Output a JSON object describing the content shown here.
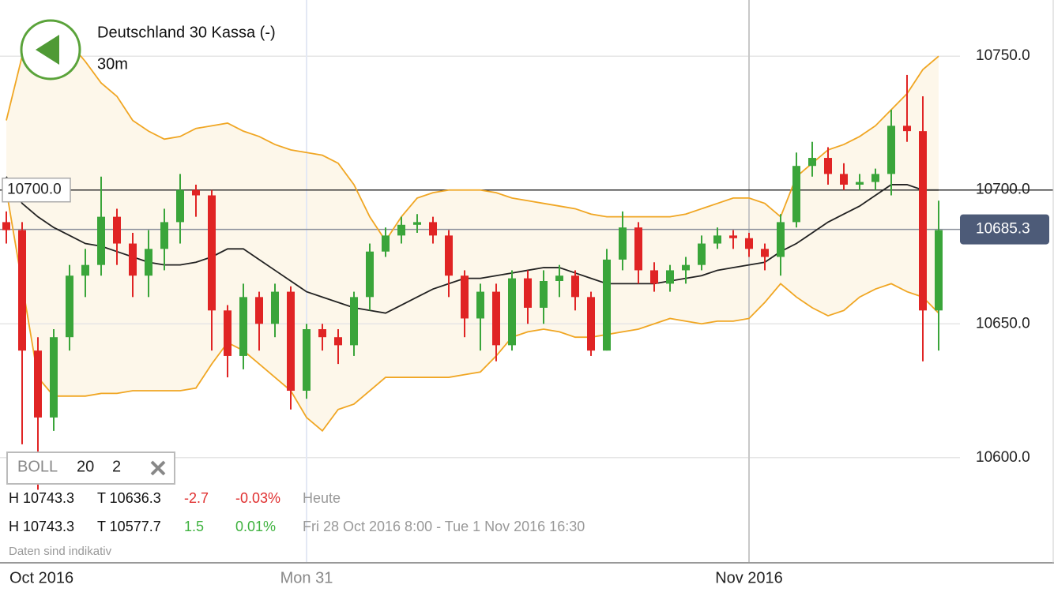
{
  "header": {
    "title": "Deutschland 30 Kassa (-)",
    "interval": "30m"
  },
  "chart_data": {
    "type": "candlestick",
    "categories": [
      "Oct 2016",
      null,
      null,
      null,
      null,
      null,
      null,
      null,
      null,
      null,
      null,
      null,
      null,
      null,
      null,
      null,
      null,
      null,
      null,
      "Mon 31",
      null,
      null,
      null,
      null,
      null,
      null,
      null,
      null,
      null,
      null,
      null,
      null,
      null,
      null,
      null,
      null,
      null,
      null,
      null,
      null,
      null,
      null,
      null,
      null,
      null,
      null,
      null,
      "Nov 2016",
      null,
      null,
      null,
      null,
      null,
      null,
      null,
      null,
      null,
      null,
      null,
      null
    ],
    "open": [
      10688,
      10685,
      10640,
      10615,
      10645,
      10668,
      10672,
      10690,
      10680,
      10668,
      10678,
      10688,
      10700,
      10698,
      10655,
      10638,
      10660,
      10650,
      10662,
      10625,
      10648,
      10645,
      10642,
      10660,
      10677,
      10683,
      10687,
      10688,
      10683,
      10668,
      10652,
      10662,
      10642,
      10667,
      10656,
      10666,
      10668,
      10660,
      10640,
      10674,
      10686,
      10670,
      10665,
      10670,
      10672,
      10680,
      10683,
      10682,
      10678,
      10675,
      10688,
      10709,
      10712,
      10706,
      10702,
      10703,
      10706,
      10724,
      10722,
      10655
    ],
    "high": [
      10692,
      10688,
      10645,
      10648,
      10672,
      10678,
      10705,
      10693,
      10684,
      10685,
      10693,
      10706,
      10702,
      10700,
      10657,
      10665,
      10662,
      10665,
      10664,
      10650,
      10650,
      10648,
      10662,
      10680,
      10686,
      10690,
      10691,
      10690,
      10685,
      10670,
      10665,
      10665,
      10670,
      10670,
      10670,
      10672,
      10670,
      10662,
      10678,
      10692,
      10688,
      10673,
      10672,
      10675,
      10683,
      10686,
      10685,
      10684,
      10680,
      10691,
      10714,
      10718,
      10716,
      10710,
      10706,
      10708,
      10730,
      10743,
      10735,
      10696
    ],
    "low": [
      10680,
      10605,
      10588,
      10610,
      10640,
      10660,
      10668,
      10672,
      10660,
      10660,
      10670,
      10680,
      10690,
      10640,
      10630,
      10633,
      10640,
      10645,
      10618,
      10622,
      10640,
      10635,
      10638,
      10655,
      10675,
      10680,
      10684,
      10680,
      10660,
      10645,
      10640,
      10636,
      10640,
      10650,
      10650,
      10660,
      10655,
      10638,
      10640,
      10670,
      10665,
      10662,
      10662,
      10665,
      10670,
      10678,
      10678,
      10675,
      10670,
      10668,
      10686,
      10705,
      10702,
      10700,
      10700,
      10700,
      10698,
      10718,
      10636,
      10640
    ],
    "close": [
      10685,
      10640,
      10615,
      10645,
      10668,
      10672,
      10690,
      10680,
      10668,
      10678,
      10688,
      10700,
      10698,
      10655,
      10638,
      10660,
      10650,
      10662,
      10625,
      10648,
      10645,
      10642,
      10660,
      10677,
      10683,
      10687,
      10688,
      10683,
      10668,
      10652,
      10662,
      10642,
      10667,
      10656,
      10666,
      10668,
      10660,
      10640,
      10674,
      10686,
      10670,
      10665,
      10670,
      10672,
      10680,
      10683,
      10682,
      10678,
      10675,
      10688,
      10709,
      10712,
      10706,
      10702,
      10703,
      10706,
      10724,
      10722,
      10655,
      10685
    ],
    "up_color": "#3aa53a",
    "down_color": "#e02424",
    "bollinger": {
      "name": "BOLL",
      "period": "20",
      "deviation": "2",
      "color": "#f0a623",
      "middle_color": "#222222",
      "fill": "#fdf7ea",
      "upper": [
        10726,
        10750,
        10756,
        10756,
        10755,
        10748,
        10740,
        10735,
        10726,
        10722,
        10719,
        10720,
        10723,
        10724,
        10725,
        10722,
        10720,
        10717,
        10715,
        10714,
        10713,
        10710,
        10702,
        10690,
        10681,
        10690,
        10697,
        10699,
        10700,
        10700,
        10700,
        10699,
        10697,
        10696,
        10695,
        10694,
        10693,
        10691,
        10690,
        10690,
        10690,
        10690,
        10690,
        10691,
        10693,
        10695,
        10697,
        10697,
        10695,
        10690,
        10705,
        10710,
        10715,
        10717,
        10720,
        10724,
        10730,
        10736,
        10745,
        10750
      ],
      "middle": [
        10705,
        10695,
        10690,
        10686,
        10683,
        10680,
        10679,
        10677,
        10675,
        10673,
        10672,
        10672,
        10673,
        10675,
        10678,
        10678,
        10674,
        10670,
        10666,
        10662,
        10660,
        10658,
        10656,
        10655,
        10654,
        10657,
        10660,
        10663,
        10665,
        10667,
        10667,
        10668,
        10669,
        10670,
        10671,
        10671,
        10669,
        10667,
        10665,
        10665,
        10665,
        10665,
        10666,
        10667,
        10668,
        10670,
        10671,
        10672,
        10673,
        10677,
        10680,
        10684,
        10688,
        10691,
        10694,
        10698,
        10702,
        10702,
        10700,
        10700
      ],
      "lower": [
        10700,
        10665,
        10630,
        10623,
        10623,
        10623,
        10624,
        10624,
        10625,
        10625,
        10625,
        10625,
        10626,
        10635,
        10643,
        10640,
        10635,
        10630,
        10625,
        10615,
        10610,
        10618,
        10620,
        10625,
        10630,
        10630,
        10630,
        10630,
        10630,
        10631,
        10632,
        10638,
        10645,
        10647,
        10648,
        10647,
        10645,
        10645,
        10646,
        10647,
        10648,
        10650,
        10652,
        10651,
        10650,
        10651,
        10651,
        10652,
        10658,
        10665,
        10660,
        10656,
        10653,
        10655,
        10660,
        10663,
        10665,
        10662,
        10660,
        10654
      ]
    },
    "ylim": [
      10561,
      10771
    ],
    "yticks": [
      {
        "value": 10600,
        "label": "10600.0"
      },
      {
        "value": 10650,
        "label": "10650.0"
      },
      {
        "value": 10700,
        "label": "10700.0"
      },
      {
        "value": 10750,
        "label": "10750.0"
      }
    ],
    "grid": true,
    "hline": {
      "value": 10700,
      "label": "10700.0"
    },
    "last_price": {
      "value": 10685.3,
      "label": "10685.3"
    }
  },
  "stats": [
    [
      "H 10743.3",
      "T 10636.3",
      "-2.7",
      "-0.03%",
      "Heute"
    ],
    [
      "H 10743.3",
      "T 10577.7",
      "1.5",
      "0.01%",
      "Fri 28 Oct 2016 8:00 - Tue 1 Nov 2016 16:30"
    ]
  ],
  "disclaimer": "Daten sind indikativ"
}
